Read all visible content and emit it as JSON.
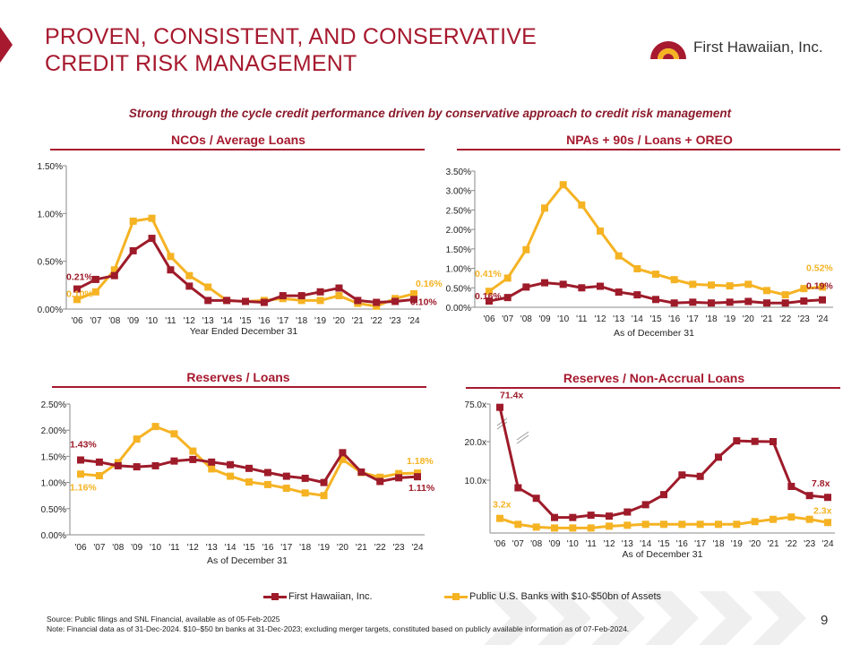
{
  "header": {
    "title_line1": "PROVEN, CONSISTENT, AND CONSERVATIVE",
    "title_line2": "CREDIT RISK MANAGEMENT",
    "logo_text": "First Hawaiian, Inc.",
    "subtitle": "Strong through the cycle credit performance driven by conservative approach to credit risk management"
  },
  "colors": {
    "fhi": "#9e1b2a",
    "peers": "#f5b323",
    "brand": "#a6192e"
  },
  "legend": {
    "fhi": "First Hawaiian, Inc.",
    "peers": "Public U.S. Banks with $10-$50bn of Assets"
  },
  "footer": {
    "source": "Source: Public filings and SNL Financial, available as of 05-Feb-2025",
    "note": "Note: Financial data as of 31-Dec-2024. $10–$50 bn banks at 31-Dec-2023; excluding merger targets, constituted based on publicly available information as of 07-Feb-2024.",
    "page_number": "9"
  },
  "chart_data": [
    {
      "type": "line",
      "title": "NCOs / Average Loans",
      "xlabel": "Year Ended December 31",
      "ylabel": "",
      "categories": [
        "'06",
        "'07",
        "'08",
        "'09",
        "'10",
        "'11",
        "'12",
        "'13",
        "'14",
        "'15",
        "'16",
        "'17",
        "'18",
        "'19",
        "'20",
        "'21",
        "'22",
        "'23",
        "'24"
      ],
      "yticks": [
        "0.00%",
        "0.50%",
        "1.00%",
        "1.50%"
      ],
      "ytick_values": [
        0,
        0.5,
        1.0,
        1.5
      ],
      "ylim": [
        0,
        1.5
      ],
      "series": [
        {
          "name": "First Hawaiian, Inc.",
          "key": "fhi",
          "values": [
            0.21,
            0.31,
            0.35,
            0.61,
            0.74,
            0.41,
            0.24,
            0.09,
            0.09,
            0.08,
            0.07,
            0.14,
            0.14,
            0.18,
            0.22,
            0.09,
            0.07,
            0.08,
            0.1
          ],
          "first_label": "0.21%",
          "last_label": "0.10%"
        },
        {
          "name": "Public U.S. Banks with $10-$50bn of Assets",
          "key": "peers",
          "values": [
            0.1,
            0.18,
            0.41,
            0.92,
            0.95,
            0.55,
            0.35,
            0.23,
            0.09,
            0.08,
            0.09,
            0.11,
            0.09,
            0.09,
            0.14,
            0.06,
            0.03,
            0.11,
            0.16
          ],
          "first_label": "0.10%",
          "last_label": "0.16%"
        }
      ],
      "grid": false,
      "legend": "bottom"
    },
    {
      "type": "line",
      "title": "NPAs + 90s / Loans + OREO",
      "xlabel": "As of December 31",
      "ylabel": "",
      "categories": [
        "'06",
        "'07",
        "'08",
        "'09",
        "'10",
        "'11",
        "'12",
        "'13",
        "'14",
        "'15",
        "'16",
        "'17",
        "'18",
        "'19",
        "'20",
        "'21",
        "'22",
        "'23",
        "'24"
      ],
      "yticks": [
        "0.00%",
        "0.50%",
        "1.00%",
        "1.50%",
        "2.00%",
        "2.50%",
        "3.00%",
        "3.50%"
      ],
      "ytick_values": [
        0,
        0.5,
        1.0,
        1.5,
        2.0,
        2.5,
        3.0,
        3.5
      ],
      "ylim": [
        0,
        3.5
      ],
      "series": [
        {
          "name": "First Hawaiian, Inc.",
          "key": "fhi",
          "values": [
            0.16,
            0.25,
            0.52,
            0.63,
            0.59,
            0.5,
            0.54,
            0.39,
            0.32,
            0.2,
            0.11,
            0.13,
            0.11,
            0.13,
            0.15,
            0.11,
            0.11,
            0.16,
            0.19
          ],
          "first_label": "0.16%",
          "last_label": "0.19%"
        },
        {
          "name": "Public U.S. Banks with $10-$50bn of Assets",
          "key": "peers",
          "values": [
            0.41,
            0.75,
            1.48,
            2.55,
            3.15,
            2.63,
            1.96,
            1.32,
            0.99,
            0.85,
            0.71,
            0.59,
            0.57,
            0.55,
            0.59,
            0.43,
            0.32,
            0.48,
            0.52
          ],
          "first_label": "0.41%",
          "last_label": "0.52%"
        }
      ],
      "grid": false,
      "legend": "bottom"
    },
    {
      "type": "line",
      "title": "Reserves / Loans",
      "xlabel": "As of December 31",
      "ylabel": "",
      "categories": [
        "'06",
        "'07",
        "'08",
        "'09",
        "'10",
        "'11",
        "'12",
        "'13",
        "'14",
        "'15",
        "'16",
        "'17",
        "'18",
        "'19",
        "'20",
        "'21",
        "'22",
        "'23",
        "'24"
      ],
      "yticks": [
        "0.00%",
        "0.50%",
        "1.00%",
        "1.50%",
        "2.00%",
        "2.50%"
      ],
      "ytick_values": [
        0,
        0.5,
        1.0,
        1.5,
        2.0,
        2.5
      ],
      "ylim": [
        0,
        2.5
      ],
      "series": [
        {
          "name": "First Hawaiian, Inc.",
          "key": "fhi",
          "values": [
            1.43,
            1.39,
            1.32,
            1.3,
            1.32,
            1.41,
            1.44,
            1.39,
            1.34,
            1.27,
            1.19,
            1.12,
            1.08,
            1.0,
            1.57,
            1.2,
            1.02,
            1.09,
            1.11
          ],
          "first_label": "1.43%",
          "last_label": "1.11%"
        },
        {
          "name": "Public U.S. Banks with $10-$50bn of Assets",
          "key": "peers",
          "values": [
            1.16,
            1.13,
            1.38,
            1.83,
            2.07,
            1.93,
            1.6,
            1.26,
            1.12,
            1.01,
            0.96,
            0.89,
            0.8,
            0.75,
            1.44,
            1.19,
            1.1,
            1.17,
            1.18
          ],
          "first_label": "1.16%",
          "last_label": "1.18%"
        }
      ],
      "grid": false,
      "legend": "bottom"
    },
    {
      "type": "line",
      "title": "Reserves / Non-Accrual Loans",
      "xlabel": "As of December 31",
      "ylabel": "",
      "categories": [
        "'06",
        "'07",
        "'08",
        "'09",
        "'10",
        "'11",
        "'12",
        "'13",
        "'14",
        "'15",
        "'16",
        "'17",
        "'18",
        "'19",
        "'20",
        "'21",
        "'22",
        "'23",
        "'24"
      ],
      "yticks": [
        "10.0x",
        "20.0x",
        "75.0x"
      ],
      "ytick_values": [
        10,
        20,
        75
      ],
      "ylim": [
        0,
        75
      ],
      "axis_break": "between 20.0x and 75.0x",
      "series": [
        {
          "name": "First Hawaiian, Inc.",
          "key": "fhi",
          "values": [
            71.4,
            9.9,
            7.6,
            3.4,
            3.4,
            3.9,
            3.7,
            4.6,
            6.2,
            8.4,
            12.7,
            12.4,
            16.6,
            21.2,
            20.4,
            20.0,
            10.2,
            8.2,
            7.8
          ],
          "first_label": "71.4x",
          "last_label": "7.8x"
        },
        {
          "name": "Public U.S. Banks with $10-$50bn of Assets",
          "key": "peers",
          "values": [
            3.2,
            1.9,
            1.3,
            1.1,
            1.1,
            1.1,
            1.5,
            1.7,
            1.9,
            1.9,
            1.9,
            1.9,
            1.9,
            1.9,
            2.5,
            3.0,
            3.5,
            3.0,
            2.3
          ],
          "first_label": "3.2x",
          "last_label": "2.3x"
        }
      ],
      "grid": false,
      "legend": "bottom"
    }
  ]
}
